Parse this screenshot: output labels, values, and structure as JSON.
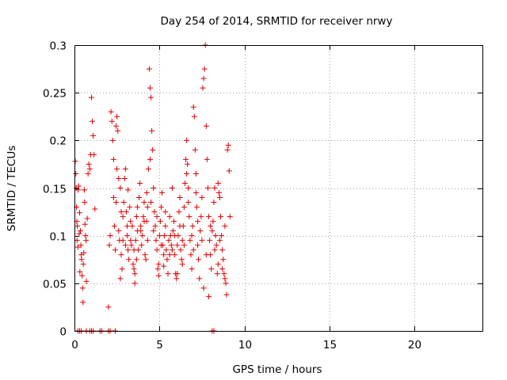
{
  "chart_data": {
    "type": "scatter",
    "title": "Day 254 of 2014, SRMTID for receiver nrwy",
    "xlabel": "GPS time / hours",
    "ylabel": "SRMTID / TECUs",
    "xlim": [
      0,
      24
    ],
    "ylim": [
      0,
      0.3
    ],
    "xticks": [
      0,
      5,
      10,
      15,
      20
    ],
    "xtick_labels": [
      "0",
      "5",
      "10",
      "15",
      "20"
    ],
    "yticks": [
      0,
      0.05,
      0.1,
      0.15,
      0.2,
      0.25,
      0.3
    ],
    "ytick_labels": [
      "0",
      "0.05",
      "0.1",
      "0.15",
      "0.2",
      "0.25",
      "0.3"
    ],
    "grid": true,
    "marker": "plus",
    "color": "#e00000",
    "series": [
      {
        "name": "SRMTID",
        "points": [
          [
            0.05,
            0.178
          ],
          [
            0.08,
            0.165
          ],
          [
            0.1,
            0.15
          ],
          [
            0.12,
            0.13
          ],
          [
            0.14,
            0.115
          ],
          [
            0.15,
            0.095
          ],
          [
            0.17,
            0.11
          ],
          [
            0.2,
            0.088
          ],
          [
            0.22,
            0.148
          ],
          [
            0.25,
            0.152
          ],
          [
            0.28,
            0.102
          ],
          [
            0.3,
            0.124
          ],
          [
            0.32,
            0.062
          ],
          [
            0.35,
            0.105
          ],
          [
            0.38,
            0.09
          ],
          [
            0.4,
            0.08
          ],
          [
            0.42,
            0.075
          ],
          [
            0.45,
            0.058
          ],
          [
            0.48,
            0.045
          ],
          [
            0.5,
            0.03
          ],
          [
            0.52,
            0.07
          ],
          [
            0.55,
            0.082
          ],
          [
            0.58,
            0.148
          ],
          [
            0.6,
            0.135
          ],
          [
            0.62,
            0.112
          ],
          [
            0.65,
            0.1
          ],
          [
            0.68,
            0.095
          ],
          [
            0.7,
            0.052
          ],
          [
            0.75,
            0.118
          ],
          [
            0.8,
            0.165
          ],
          [
            0.85,
            0.175
          ],
          [
            0.9,
            0.17
          ],
          [
            0.95,
            0.185
          ],
          [
            1.0,
            0.245
          ],
          [
            1.05,
            0.22
          ],
          [
            1.1,
            0.205
          ],
          [
            1.15,
            0.185
          ],
          [
            1.2,
            0.128
          ],
          [
            0.2,
            0.0
          ],
          [
            0.3,
            0.0
          ],
          [
            0.4,
            0.0
          ],
          [
            0.7,
            0.0
          ],
          [
            0.9,
            0.0
          ],
          [
            1.0,
            0.0
          ],
          [
            1.1,
            0.0
          ],
          [
            1.5,
            0.0
          ],
          [
            1.6,
            0.0
          ],
          [
            2.0,
            0.0
          ],
          [
            2.1,
            0.0
          ],
          [
            2.4,
            0.0
          ],
          [
            8.1,
            0.0
          ],
          [
            8.2,
            0.0
          ],
          [
            2.0,
            0.025
          ],
          [
            2.05,
            0.09
          ],
          [
            2.1,
            0.1
          ],
          [
            2.15,
            0.23
          ],
          [
            2.2,
            0.22
          ],
          [
            2.25,
            0.2
          ],
          [
            2.3,
            0.18
          ],
          [
            2.35,
            0.11
          ],
          [
            2.4,
            0.085
          ],
          [
            2.45,
            0.215
          ],
          [
            2.5,
            0.225
          ],
          [
            2.55,
            0.21
          ],
          [
            2.6,
            0.105
          ],
          [
            2.65,
            0.095
          ],
          [
            2.7,
            0.15
          ],
          [
            2.75,
            0.08
          ],
          [
            2.8,
            0.065
          ],
          [
            2.85,
            0.12
          ],
          [
            2.9,
            0.135
          ],
          [
            2.95,
            0.16
          ],
          [
            3.0,
            0.17
          ],
          [
            3.05,
            0.125
          ],
          [
            3.1,
            0.1
          ],
          [
            3.15,
            0.085
          ],
          [
            3.2,
            0.075
          ],
          [
            3.25,
            0.13
          ],
          [
            3.3,
            0.115
          ],
          [
            3.35,
            0.09
          ],
          [
            3.4,
            0.11
          ],
          [
            3.45,
            0.07
          ],
          [
            3.5,
            0.065
          ],
          [
            3.55,
            0.06
          ],
          [
            3.6,
            0.095
          ],
          [
            3.65,
            0.12
          ],
          [
            3.7,
            0.105
          ],
          [
            3.75,
            0.085
          ],
          [
            3.8,
            0.14
          ],
          [
            3.85,
            0.155
          ],
          [
            3.9,
            0.11
          ],
          [
            3.95,
            0.09
          ],
          [
            4.0,
            0.1
          ],
          [
            4.05,
            0.12
          ],
          [
            4.1,
            0.135
          ],
          [
            4.15,
            0.08
          ],
          [
            4.2,
            0.075
          ],
          [
            4.25,
            0.115
          ],
          [
            4.3,
            0.13
          ],
          [
            4.35,
            0.17
          ],
          [
            4.4,
            0.275
          ],
          [
            4.45,
            0.255
          ],
          [
            4.5,
            0.245
          ],
          [
            4.55,
            0.21
          ],
          [
            4.6,
            0.19
          ],
          [
            4.65,
            0.15
          ],
          [
            4.7,
            0.125
          ],
          [
            4.75,
            0.11
          ],
          [
            4.8,
            0.095
          ],
          [
            4.85,
            0.085
          ],
          [
            4.9,
            0.065
          ],
          [
            4.95,
            0.07
          ],
          [
            5.0,
            0.1
          ],
          [
            5.05,
            0.115
          ],
          [
            5.1,
            0.13
          ],
          [
            5.15,
            0.145
          ],
          [
            5.2,
            0.09
          ],
          [
            5.25,
            0.08
          ],
          [
            5.3,
            0.1
          ],
          [
            5.35,
            0.11
          ],
          [
            5.4,
            0.085
          ],
          [
            5.45,
            0.075
          ],
          [
            5.5,
            0.06
          ],
          [
            5.55,
            0.095
          ],
          [
            5.6,
            0.12
          ],
          [
            5.65,
            0.1
          ],
          [
            5.7,
            0.09
          ],
          [
            5.75,
            0.085
          ],
          [
            5.8,
            0.105
          ],
          [
            5.85,
            0.115
          ],
          [
            5.9,
            0.08
          ],
          [
            5.95,
            0.06
          ],
          [
            6.0,
            0.055
          ],
          [
            6.05,
            0.09
          ],
          [
            6.1,
            0.1
          ],
          [
            6.15,
            0.125
          ],
          [
            6.2,
            0.14
          ],
          [
            6.25,
            0.085
          ],
          [
            6.3,
            0.075
          ],
          [
            6.35,
            0.095
          ],
          [
            6.4,
            0.11
          ],
          [
            6.45,
            0.13
          ],
          [
            6.5,
            0.155
          ],
          [
            6.55,
            0.18
          ],
          [
            6.6,
            0.2
          ],
          [
            6.65,
            0.175
          ],
          [
            6.7,
            0.15
          ],
          [
            6.75,
            0.12
          ],
          [
            6.8,
            0.095
          ],
          [
            6.85,
            0.08
          ],
          [
            6.9,
            0.1
          ],
          [
            6.95,
            0.11
          ],
          [
            7.0,
            0.235
          ],
          [
            7.05,
            0.225
          ],
          [
            7.1,
            0.19
          ],
          [
            7.15,
            0.165
          ],
          [
            7.2,
            0.13
          ],
          [
            7.25,
            0.09
          ],
          [
            7.3,
            0.075
          ],
          [
            7.35,
            0.055
          ],
          [
            7.4,
            0.105
          ],
          [
            7.45,
            0.12
          ],
          [
            7.5,
            0.14
          ],
          [
            7.55,
            0.255
          ],
          [
            7.6,
            0.265
          ],
          [
            7.65,
            0.275
          ],
          [
            7.7,
            0.3
          ],
          [
            7.75,
            0.215
          ],
          [
            7.8,
            0.18
          ],
          [
            7.85,
            0.15
          ],
          [
            7.9,
            0.12
          ],
          [
            7.95,
            0.095
          ],
          [
            8.0,
            0.08
          ],
          [
            8.05,
            0.065
          ],
          [
            8.1,
            0.105
          ],
          [
            8.15,
            0.115
          ],
          [
            8.2,
            0.135
          ],
          [
            8.25,
            0.15
          ],
          [
            8.3,
            0.1
          ],
          [
            8.35,
            0.09
          ],
          [
            8.4,
            0.06
          ],
          [
            8.45,
            0.07
          ],
          [
            8.5,
            0.145
          ],
          [
            8.55,
            0.14
          ],
          [
            8.6,
            0.12
          ],
          [
            8.65,
            0.1
          ],
          [
            8.7,
            0.085
          ],
          [
            8.75,
            0.075
          ],
          [
            8.8,
            0.06
          ],
          [
            8.85,
            0.055
          ],
          [
            8.9,
            0.05
          ],
          [
            8.95,
            0.038
          ],
          [
            9.0,
            0.19
          ],
          [
            9.05,
            0.195
          ],
          [
            9.1,
            0.168
          ],
          [
            9.15,
            0.12
          ],
          [
            2.3,
            0.14
          ],
          [
            2.45,
            0.135
          ],
          [
            2.6,
            0.16
          ],
          [
            2.75,
            0.125
          ],
          [
            2.85,
            0.095
          ],
          [
            3.0,
            0.09
          ],
          [
            3.1,
            0.11
          ],
          [
            3.3,
            0.095
          ],
          [
            3.5,
            0.085
          ],
          [
            3.7,
            0.13
          ],
          [
            3.9,
            0.105
          ],
          [
            4.1,
            0.115
          ],
          [
            4.3,
            0.095
          ],
          [
            4.5,
            0.135
          ],
          [
            4.65,
            0.105
          ],
          [
            4.85,
            0.12
          ],
          [
            5.1,
            0.09
          ],
          [
            5.35,
            0.125
          ],
          [
            5.6,
            0.08
          ],
          [
            5.9,
            0.1
          ],
          [
            6.2,
            0.11
          ],
          [
            6.45,
            0.09
          ],
          [
            6.7,
            0.135
          ],
          [
            7.0,
            0.085
          ],
          [
            7.25,
            0.115
          ],
          [
            7.5,
            0.095
          ],
          [
            7.75,
            0.08
          ],
          [
            8.0,
            0.11
          ],
          [
            8.25,
            0.085
          ],
          [
            8.55,
            0.095
          ],
          [
            8.85,
            0.11
          ],
          [
            7.9,
            0.036
          ],
          [
            7.6,
            0.045
          ],
          [
            6.05,
            0.06
          ],
          [
            3.55,
            0.05
          ],
          [
            4.95,
            0.058
          ],
          [
            6.9,
            0.065
          ],
          [
            2.7,
            0.055
          ],
          [
            3.15,
            0.148
          ],
          [
            5.75,
            0.15
          ],
          [
            4.25,
            0.145
          ],
          [
            6.6,
            0.165
          ],
          [
            7.15,
            0.145
          ],
          [
            8.45,
            0.155
          ],
          [
            2.5,
            0.17
          ],
          [
            4.45,
            0.18
          ],
          [
            3.65,
            0.075
          ],
          [
            5.25,
            0.068
          ],
          [
            6.35,
            0.07
          ],
          [
            8.7,
            0.065
          ]
        ]
      }
    ]
  }
}
